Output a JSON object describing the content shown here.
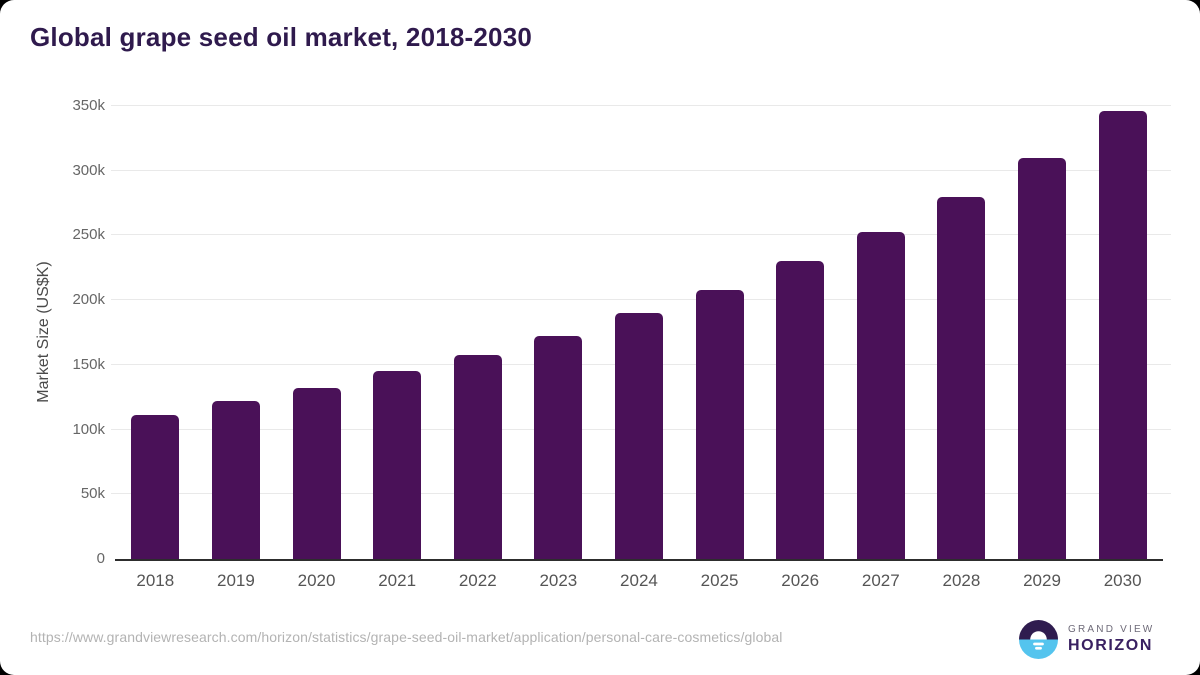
{
  "page": {
    "background_color": "#000000",
    "card_color": "#ffffff"
  },
  "header": {
    "title": "Global grape seed oil market, 2018-2030",
    "title_color": "#2f1a4d"
  },
  "chart_data": {
    "type": "bar",
    "title": "Global grape seed oil market, 2018-2030",
    "categories": [
      "2018",
      "2019",
      "2020",
      "2021",
      "2022",
      "2023",
      "2024",
      "2025",
      "2026",
      "2027",
      "2028",
      "2029",
      "2030"
    ],
    "values": [
      111000,
      122000,
      132000,
      145000,
      158000,
      172000,
      190000,
      208000,
      230000,
      253000,
      280000,
      310000,
      346000
    ],
    "xlabel": "",
    "ylabel": "Market Size (US$K)",
    "ylim": [
      0,
      350000
    ],
    "yticks": [
      {
        "value": 0,
        "label": "0"
      },
      {
        "value": 50000,
        "label": "50k"
      },
      {
        "value": 100000,
        "label": "100k"
      },
      {
        "value": 150000,
        "label": "150k"
      },
      {
        "value": 200000,
        "label": "200k"
      },
      {
        "value": 250000,
        "label": "250k"
      },
      {
        "value": 300000,
        "label": "300k"
      },
      {
        "value": 350000,
        "label": "350k"
      }
    ],
    "grid": "horizontal",
    "legend": "none",
    "bar_color": "#4a1158",
    "gridline_color": "#e9e9e9",
    "axis_line_color": "#2d2d2d"
  },
  "footer": {
    "source_url": "https://www.grandviewresearch.com/horizon/statistics/grape-seed-oil-market/application/personal-care-cosmetics/global",
    "logo": {
      "line1": "GRAND VIEW",
      "line2": "HORIZON",
      "icon": "horizon-sunrise-icon",
      "icon_top_color": "#2f1c4f",
      "icon_bottom_color": "#54c4ee",
      "icon_accent_color": "#ffffff"
    }
  }
}
